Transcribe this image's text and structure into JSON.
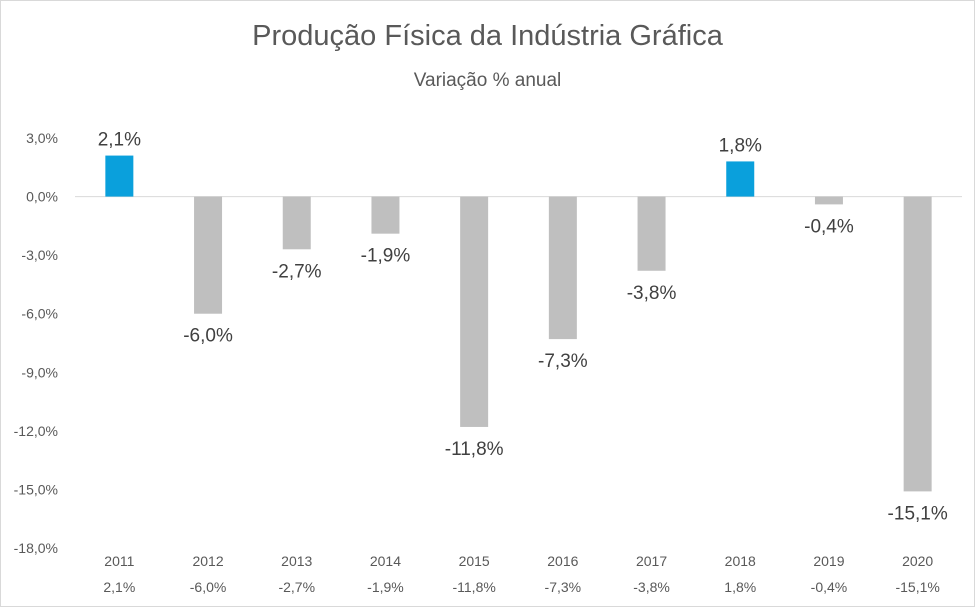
{
  "chart_data": {
    "type": "bar",
    "title": "Produção Física da Indústria Gráfica",
    "subtitle": "Variação % anual",
    "categories": [
      "2011",
      "2012",
      "2013",
      "2014",
      "2015",
      "2016",
      "2017",
      "2018",
      "2019",
      "2020"
    ],
    "values": [
      2.1,
      -6.0,
      -2.7,
      -1.9,
      -11.8,
      -7.3,
      -3.8,
      1.8,
      -0.4,
      -15.1
    ],
    "data_labels": [
      "2,1%",
      "-6,0%",
      "-2,7%",
      "-1,9%",
      "-11,8%",
      "-7,3%",
      "-3,8%",
      "1,8%",
      "-0,4%",
      "-15,1%"
    ],
    "y_ticks": [
      3.0,
      0.0,
      -3.0,
      -6.0,
      -9.0,
      -12.0,
      -15.0,
      -18.0
    ],
    "y_tick_labels": [
      "3,0%",
      "0,0%",
      "-3,0%",
      "-6,0%",
      "-9,0%",
      "-12,0%",
      "-15,0%",
      "-18,0%"
    ],
    "ylim": [
      -18,
      3
    ],
    "xlabel": "",
    "ylabel": "",
    "grid": false,
    "colors": {
      "positive": "#0aa0dc",
      "negative": "#bfbfbf",
      "axis": "#d9d9d9"
    }
  }
}
